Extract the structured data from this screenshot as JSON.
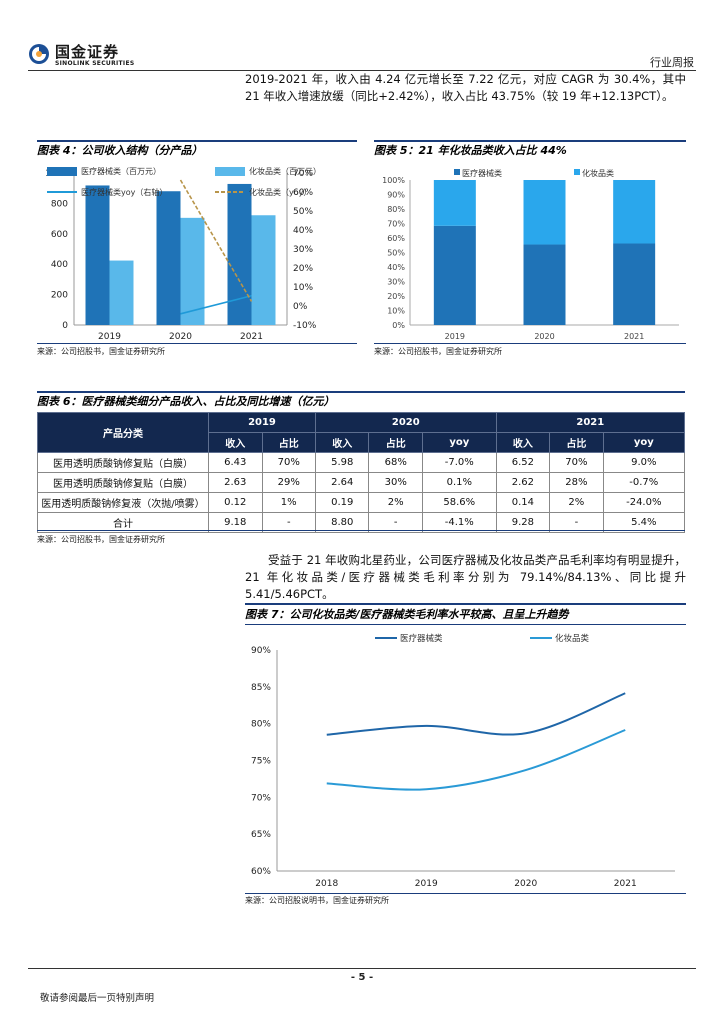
{
  "header": {
    "logo_cn": "国金证券",
    "logo_en": "SINOLINK SECURITIES",
    "report_type": "行业周报"
  },
  "paragraph1": "2019-2021 年，收入由 4.24 亿元增长至 7.22 亿元，对应 CAGR 为 30.4%，其中 21 年收入增速放缓（同比+2.42%），收入占比 43.75%（较 19 年+12.13PCT）。",
  "fig4": {
    "title": "图表 4：公司收入结构（分产品）",
    "source": "来源：公司招股书，国金证券研究所"
  },
  "fig5": {
    "title": "图表 5：21 年化妆品类收入占比 44%",
    "source": "来源：公司招股书，国金证券研究所"
  },
  "fig6": {
    "title": "图表 6：医疗器械类细分产品收入、占比及同比增速（亿元）",
    "source": "来源：公司招股书，国金证券研究所",
    "col_product": "产品分类",
    "years": [
      "2019",
      "2020",
      "2021"
    ],
    "sub_headers": [
      "收入",
      "占比",
      "收入",
      "占比",
      "yoy",
      "收入",
      "占比",
      "yoy"
    ],
    "rows": [
      {
        "name": "医用透明质酸钠修复贴（白膜）",
        "cells": [
          "6.43",
          "70%",
          "5.98",
          "68%",
          "-7.0%",
          "6.52",
          "70%",
          "9.0%"
        ]
      },
      {
        "name": "医用透明质酸钠修复贴（白膜）",
        "cells": [
          "2.63",
          "29%",
          "2.64",
          "30%",
          "0.1%",
          "2.62",
          "28%",
          "-0.7%"
        ]
      },
      {
        "name": "医用透明质酸钠修复液（次抛/喷雾）",
        "cells": [
          "0.12",
          "1%",
          "0.19",
          "2%",
          "58.6%",
          "0.14",
          "2%",
          "-24.0%"
        ]
      },
      {
        "name": "合计",
        "cells": [
          "9.18",
          "-",
          "8.80",
          "-",
          "-4.1%",
          "9.28",
          "-",
          "5.4%"
        ]
      }
    ]
  },
  "paragraph2": "受益于 21 年收购北星药业，公司医疗器械及化妆品类产品毛利率均有明显提升，21 年化妆品类/医疗器械类毛利率分别为 79.14%/84.13%、同比提升 5.41/5.46PCT。",
  "fig7": {
    "title": "图表 7：公司化妆品类/医疗器械类毛利率水平较高、且呈上升趋势",
    "source": "来源：公司招股说明书，国金证券研究所"
  },
  "footer": {
    "page": "- 5 -",
    "note": "敬请参阅最后一页特别声明"
  },
  "colors": {
    "dark_blue": "#1f73b7",
    "light_blue": "#59b8ea",
    "gold": "#b8954a",
    "navy": "#13284f"
  },
  "chart_data": [
    {
      "id": "fig4",
      "type": "bar",
      "categories": [
        "2019",
        "2020",
        "2021"
      ],
      "series": [
        {
          "name": "医疗器械类（百万元）",
          "kind": "bar",
          "axis": "left",
          "color": "#1f73b7",
          "values": [
            918,
            880,
            928
          ]
        },
        {
          "name": "化妆品类（百万元）",
          "kind": "bar",
          "axis": "left",
          "color": "#59b8ea",
          "values": [
            424,
            705,
            722
          ]
        },
        {
          "name": "医疗器械类yoy（右轴）",
          "kind": "line",
          "axis": "right",
          "color": "#1f9ad8",
          "values": [
            null,
            -4.1,
            5.4
          ]
        },
        {
          "name": "化妆品类（yoy）",
          "kind": "line-dashed",
          "axis": "right",
          "color": "#b8954a",
          "values": [
            null,
            66.3,
            2.4
          ]
        }
      ],
      "ylim_left": [
        0,
        1000
      ],
      "yticks_left": [
        0,
        200,
        400,
        600,
        800,
        1000
      ],
      "ylim_right": [
        -10,
        70
      ],
      "yticks_right": [
        "-10%",
        "0%",
        "10%",
        "20%",
        "30%",
        "40%",
        "50%",
        "60%",
        "70%"
      ],
      "legend": "top-inside",
      "grid": false
    },
    {
      "id": "fig5",
      "type": "bar",
      "stacked": true,
      "categories": [
        "2019",
        "2020",
        "2021"
      ],
      "series": [
        {
          "name": "医疗器械类",
          "color": "#1f73b7",
          "values": [
            68.4,
            55.5,
            56.2
          ]
        },
        {
          "name": "化妆品类",
          "color": "#2aa7ec",
          "values": [
            31.6,
            44.5,
            43.8
          ]
        }
      ],
      "ylim": [
        0,
        100
      ],
      "yticks": [
        "0%",
        "10%",
        "20%",
        "30%",
        "40%",
        "50%",
        "60%",
        "70%",
        "80%",
        "90%",
        "100%"
      ],
      "legend": "top",
      "grid": false
    },
    {
      "id": "fig7",
      "type": "line",
      "categories": [
        "2018",
        "2019",
        "2020",
        "2021"
      ],
      "series": [
        {
          "name": "医疗器械类",
          "color": "#1f66a8",
          "values": [
            78.5,
            79.7,
            78.7,
            84.13
          ]
        },
        {
          "name": "化妆品类",
          "color": "#2a9ad6",
          "values": [
            71.9,
            71.1,
            73.7,
            79.14
          ]
        }
      ],
      "ylim": [
        60,
        90
      ],
      "yticks": [
        "60%",
        "65%",
        "70%",
        "75%",
        "80%",
        "85%",
        "90%"
      ],
      "legend": "top",
      "grid": false
    }
  ]
}
